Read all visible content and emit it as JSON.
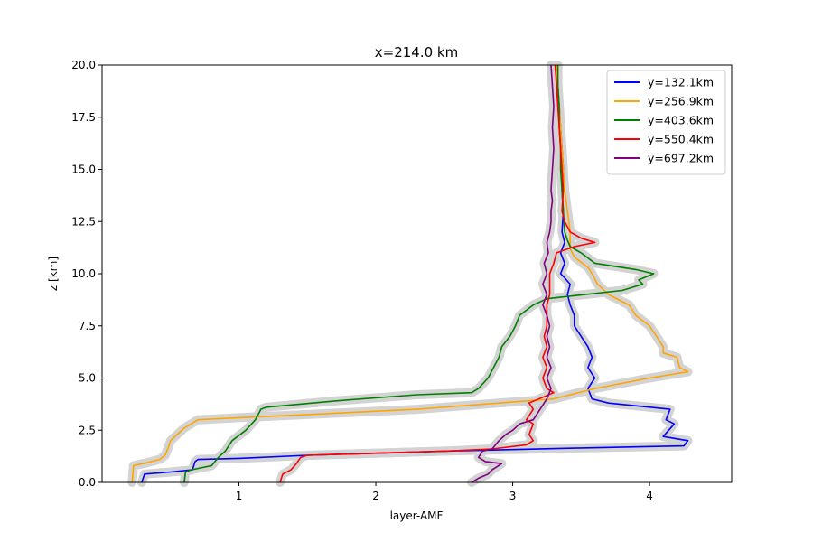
{
  "chart_data": {
    "type": "line",
    "title": "x=214.0 km",
    "xlabel": "layer-AMF",
    "ylabel": "z [km]",
    "xlim": [
      0.0,
      4.6
    ],
    "ylim": [
      0,
      20
    ],
    "xticks": [
      1,
      2,
      3,
      4
    ],
    "xtick_labels": [
      "1",
      "2",
      "3",
      "4"
    ],
    "yticks": [
      0,
      2.5,
      5,
      7.5,
      10,
      12.5,
      15,
      17.5,
      20
    ],
    "ytick_labels": [
      "0.0",
      "2.5",
      "5.0",
      "7.5",
      "10.0",
      "12.5",
      "15.0",
      "17.5",
      "20.0"
    ],
    "grid": false,
    "legend_position": "top-right",
    "uncertainty_band_color": "#d3d3d3",
    "series": [
      {
        "name": "y=132.1km",
        "color": "#0000ff",
        "points": [
          [
            0.29,
            0
          ],
          [
            0.31,
            0.4
          ],
          [
            0.5,
            0.5
          ],
          [
            0.66,
            0.6
          ],
          [
            0.68,
            1.0
          ],
          [
            0.7,
            1.1
          ],
          [
            1.0,
            1.15
          ],
          [
            1.5,
            1.3
          ],
          [
            2.5,
            1.5
          ],
          [
            3.5,
            1.65
          ],
          [
            4.25,
            1.75
          ],
          [
            4.28,
            2.0
          ],
          [
            4.1,
            2.2
          ],
          [
            4.18,
            2.8
          ],
          [
            4.12,
            3.0
          ],
          [
            4.15,
            3.5
          ],
          [
            3.7,
            3.8
          ],
          [
            3.58,
            4.0
          ],
          [
            3.55,
            4.5
          ],
          [
            3.58,
            4.8
          ],
          [
            3.6,
            5.0
          ],
          [
            3.58,
            5.2
          ],
          [
            3.55,
            5.5
          ],
          [
            3.58,
            6.0
          ],
          [
            3.55,
            6.5
          ],
          [
            3.5,
            7.0
          ],
          [
            3.45,
            7.5
          ],
          [
            3.45,
            8.0
          ],
          [
            3.42,
            8.5
          ],
          [
            3.4,
            9.0
          ],
          [
            3.42,
            9.5
          ],
          [
            3.38,
            9.8
          ],
          [
            3.35,
            10.0
          ],
          [
            3.38,
            10.5
          ],
          [
            3.35,
            11.0
          ],
          [
            3.38,
            11.5
          ],
          [
            3.36,
            12.0
          ],
          [
            3.37,
            13.0
          ],
          [
            3.36,
            14.0
          ],
          [
            3.37,
            15.0
          ],
          [
            3.36,
            16.0
          ],
          [
            3.35,
            17.0
          ],
          [
            3.34,
            18.0
          ],
          [
            3.33,
            19.0
          ],
          [
            3.32,
            20.0
          ]
        ]
      },
      {
        "name": "y=256.9km",
        "color": "#ffa500",
        "points": [
          [
            0.22,
            0
          ],
          [
            0.23,
            0.8
          ],
          [
            0.3,
            0.9
          ],
          [
            0.42,
            1.1
          ],
          [
            0.46,
            1.3
          ],
          [
            0.48,
            1.6
          ],
          [
            0.5,
            2.0
          ],
          [
            0.55,
            2.3
          ],
          [
            0.6,
            2.6
          ],
          [
            0.7,
            3.0
          ],
          [
            1.0,
            3.1
          ],
          [
            1.5,
            3.25
          ],
          [
            2.3,
            3.5
          ],
          [
            2.9,
            3.8
          ],
          [
            3.3,
            4.0
          ],
          [
            3.6,
            4.5
          ],
          [
            4.0,
            5.0
          ],
          [
            4.28,
            5.3
          ],
          [
            4.22,
            5.5
          ],
          [
            4.2,
            6.0
          ],
          [
            4.1,
            6.2
          ],
          [
            4.1,
            6.5
          ],
          [
            4.05,
            7.0
          ],
          [
            4.0,
            7.5
          ],
          [
            3.9,
            8.0
          ],
          [
            3.85,
            8.5
          ],
          [
            3.7,
            9.0
          ],
          [
            3.62,
            9.5
          ],
          [
            3.58,
            10.0
          ],
          [
            3.55,
            10.3
          ],
          [
            3.45,
            10.8
          ],
          [
            3.42,
            11.2
          ],
          [
            3.42,
            12.0
          ],
          [
            3.4,
            13.0
          ],
          [
            3.38,
            14.0
          ],
          [
            3.37,
            15.0
          ],
          [
            3.36,
            16.0
          ],
          [
            3.35,
            17.0
          ],
          [
            3.34,
            18.0
          ],
          [
            3.33,
            19.0
          ],
          [
            3.32,
            20.0
          ]
        ]
      },
      {
        "name": "y=403.6km",
        "color": "#008000",
        "points": [
          [
            0.6,
            0
          ],
          [
            0.61,
            0.5
          ],
          [
            0.65,
            0.6
          ],
          [
            0.8,
            0.8
          ],
          [
            0.85,
            1.2
          ],
          [
            0.9,
            1.5
          ],
          [
            0.95,
            2.0
          ],
          [
            1.05,
            2.5
          ],
          [
            1.12,
            3.0
          ],
          [
            1.16,
            3.5
          ],
          [
            1.2,
            3.6
          ],
          [
            1.7,
            3.9
          ],
          [
            2.3,
            4.2
          ],
          [
            2.7,
            4.3
          ],
          [
            2.75,
            4.5
          ],
          [
            2.82,
            5.0
          ],
          [
            2.86,
            5.5
          ],
          [
            2.9,
            6.0
          ],
          [
            2.92,
            6.5
          ],
          [
            2.98,
            7.0
          ],
          [
            3.02,
            7.5
          ],
          [
            3.05,
            8.0
          ],
          [
            3.15,
            8.5
          ],
          [
            3.25,
            8.8
          ],
          [
            3.8,
            9.2
          ],
          [
            3.95,
            9.5
          ],
          [
            3.92,
            9.7
          ],
          [
            4.03,
            10.0
          ],
          [
            3.9,
            10.2
          ],
          [
            3.6,
            10.5
          ],
          [
            3.5,
            11.0
          ],
          [
            3.42,
            11.3
          ],
          [
            3.4,
            11.6
          ],
          [
            3.38,
            12.0
          ],
          [
            3.37,
            13.0
          ],
          [
            3.36,
            14.0
          ],
          [
            3.35,
            15.0
          ],
          [
            3.35,
            16.0
          ],
          [
            3.34,
            17.0
          ],
          [
            3.34,
            18.0
          ],
          [
            3.33,
            19.0
          ],
          [
            3.33,
            20.0
          ]
        ]
      },
      {
        "name": "y=550.4km",
        "color": "#ff0000",
        "points": [
          [
            1.3,
            0
          ],
          [
            1.32,
            0.4
          ],
          [
            1.38,
            0.6
          ],
          [
            1.42,
            0.9
          ],
          [
            1.45,
            1.2
          ],
          [
            1.5,
            1.3
          ],
          [
            2.0,
            1.4
          ],
          [
            2.5,
            1.5
          ],
          [
            2.85,
            1.6
          ],
          [
            3.1,
            1.8
          ],
          [
            3.15,
            2.0
          ],
          [
            3.12,
            2.3
          ],
          [
            3.15,
            2.8
          ],
          [
            3.1,
            3.0
          ],
          [
            3.15,
            3.5
          ],
          [
            3.12,
            3.8
          ],
          [
            3.3,
            4.3
          ],
          [
            3.25,
            4.5
          ],
          [
            3.22,
            5.0
          ],
          [
            3.25,
            5.5
          ],
          [
            3.22,
            6.0
          ],
          [
            3.25,
            6.5
          ],
          [
            3.23,
            7.0
          ],
          [
            3.25,
            7.5
          ],
          [
            3.25,
            8.0
          ],
          [
            3.25,
            8.5
          ],
          [
            3.27,
            9.0
          ],
          [
            3.27,
            9.5
          ],
          [
            3.27,
            10.0
          ],
          [
            3.3,
            10.5
          ],
          [
            3.32,
            11.0
          ],
          [
            3.45,
            11.3
          ],
          [
            3.6,
            11.5
          ],
          [
            3.5,
            11.7
          ],
          [
            3.42,
            12.0
          ],
          [
            3.38,
            12.5
          ],
          [
            3.36,
            13.0
          ],
          [
            3.37,
            14.0
          ],
          [
            3.36,
            15.0
          ],
          [
            3.35,
            16.0
          ],
          [
            3.34,
            17.0
          ],
          [
            3.33,
            18.0
          ],
          [
            3.32,
            19.0
          ],
          [
            3.31,
            20.0
          ]
        ]
      },
      {
        "name": "y=697.2km",
        "color": "#800080",
        "points": [
          [
            2.7,
            0
          ],
          [
            2.75,
            0.2
          ],
          [
            2.82,
            0.4
          ],
          [
            2.85,
            0.6
          ],
          [
            2.92,
            0.9
          ],
          [
            2.8,
            1.0
          ],
          [
            2.75,
            1.2
          ],
          [
            2.78,
            1.5
          ],
          [
            2.85,
            1.6
          ],
          [
            2.9,
            2.0
          ],
          [
            2.95,
            2.3
          ],
          [
            3.0,
            2.5
          ],
          [
            3.05,
            2.8
          ],
          [
            3.15,
            3.0
          ],
          [
            3.2,
            3.5
          ],
          [
            3.25,
            4.0
          ],
          [
            3.28,
            4.5
          ],
          [
            3.25,
            5.0
          ],
          [
            3.28,
            5.5
          ],
          [
            3.25,
            6.0
          ],
          [
            3.27,
            6.5
          ],
          [
            3.25,
            7.0
          ],
          [
            3.27,
            7.5
          ],
          [
            3.25,
            8.0
          ],
          [
            3.22,
            8.5
          ],
          [
            3.25,
            9.0
          ],
          [
            3.22,
            9.5
          ],
          [
            3.25,
            10.0
          ],
          [
            3.23,
            10.5
          ],
          [
            3.26,
            11.0
          ],
          [
            3.25,
            11.5
          ],
          [
            3.27,
            12.0
          ],
          [
            3.28,
            12.5
          ],
          [
            3.28,
            13.0
          ],
          [
            3.29,
            13.5
          ],
          [
            3.28,
            14.0
          ],
          [
            3.29,
            15.0
          ],
          [
            3.3,
            16.0
          ],
          [
            3.29,
            17.0
          ],
          [
            3.3,
            18.0
          ],
          [
            3.29,
            19.0
          ],
          [
            3.28,
            20.0
          ]
        ]
      }
    ]
  }
}
